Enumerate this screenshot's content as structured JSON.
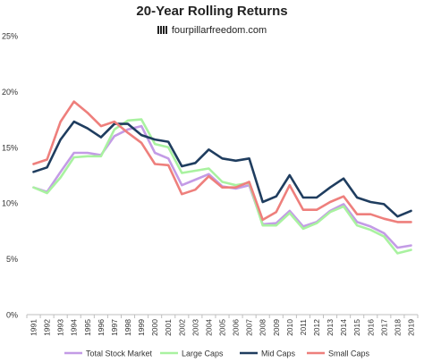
{
  "chart_data": {
    "type": "line",
    "title": "20-Year Rolling Returns",
    "subtitle": "fourpillarfreedom.com",
    "categories": [
      "1991",
      "1992",
      "1993",
      "1994",
      "1995",
      "1996",
      "1997",
      "1998",
      "1999",
      "2000",
      "2001",
      "2002",
      "2003",
      "2004",
      "2005",
      "2006",
      "2007",
      "2008",
      "2009",
      "2010",
      "2011",
      "2012",
      "2013",
      "2014",
      "2015",
      "2016",
      "2017",
      "2018",
      "2019"
    ],
    "y_ticks": [
      "0%",
      "5%",
      "10%",
      "15%",
      "20%",
      "25%"
    ],
    "ylim": [
      0,
      25
    ],
    "grid": false,
    "legend_position": "bottom",
    "series": [
      {
        "name": "Total Stock Market",
        "color": "#c39be6",
        "values": [
          11.4,
          11.0,
          12.8,
          14.5,
          14.5,
          14.3,
          16.0,
          16.6,
          16.9,
          14.5,
          14.0,
          11.6,
          12.1,
          12.6,
          11.5,
          11.3,
          11.6,
          8.1,
          8.2,
          9.3,
          7.9,
          8.3,
          9.3,
          9.9,
          8.3,
          7.9,
          7.3,
          6.0,
          6.2
        ]
      },
      {
        "name": "Large Caps",
        "color": "#a9f2a0",
        "values": [
          11.4,
          10.9,
          12.3,
          14.1,
          14.2,
          14.2,
          16.6,
          17.4,
          17.5,
          15.3,
          15.0,
          12.7,
          12.9,
          13.1,
          11.9,
          11.6,
          11.8,
          8.0,
          8.0,
          9.1,
          7.7,
          8.2,
          9.2,
          9.7,
          8.0,
          7.6,
          7.0,
          5.5,
          5.8
        ]
      },
      {
        "name": "Mid Caps",
        "color": "#1f3d5f",
        "values": [
          12.8,
          13.2,
          15.7,
          17.3,
          16.7,
          15.9,
          17.1,
          17.1,
          16.1,
          15.7,
          15.5,
          13.3,
          13.6,
          14.8,
          14.0,
          13.8,
          14.0,
          10.1,
          10.6,
          12.5,
          10.5,
          10.5,
          11.4,
          12.2,
          10.5,
          10.1,
          9.9,
          8.8,
          9.3
        ]
      },
      {
        "name": "Small Caps",
        "color": "#ee7f7c",
        "values": [
          13.5,
          13.9,
          17.3,
          19.1,
          18.1,
          16.9,
          17.3,
          16.3,
          15.4,
          13.5,
          13.4,
          10.8,
          11.2,
          12.4,
          11.4,
          11.4,
          11.9,
          8.5,
          9.2,
          11.6,
          9.4,
          9.4,
          10.1,
          10.6,
          9.0,
          9.0,
          8.6,
          8.3,
          8.3
        ]
      }
    ]
  }
}
